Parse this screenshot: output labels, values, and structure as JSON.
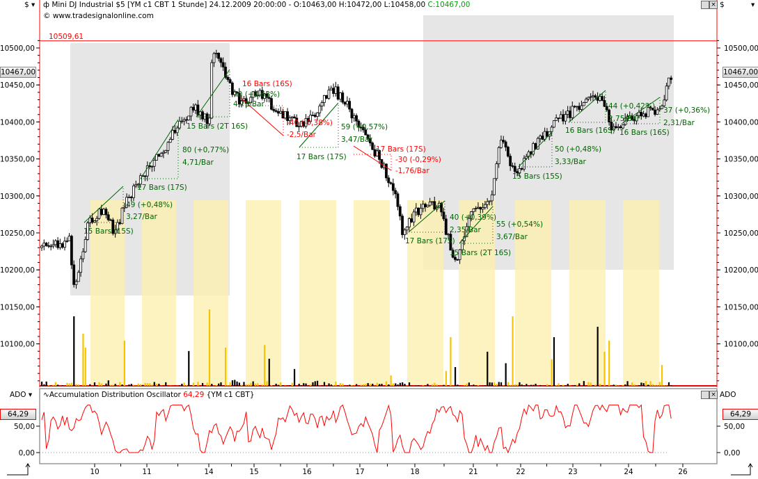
{
  "toolbar": {
    "currency_selector": "$",
    "currency_right": "$",
    "dropdown_glyph": "▾"
  },
  "header": {
    "symbol_title": "Mini DJ Industrial $5 [YM c1 CBT  1 Stunde] 24.12.2009 20:00:00 - O:10463,00 H:10472,00 L:10458,00",
    "close_text": "C:10467,00",
    "copyright": "© www.tradesignalonline.com",
    "close_color": "#00a000"
  },
  "main_panel": {
    "high_line_label": "10509,61",
    "current_price_tag": "10467,00",
    "y_ticks": [
      "10500,00",
      "10450,00",
      "10400,00",
      "10350,00",
      "10300,00",
      "10250,00",
      "10200,00",
      "10150,00",
      "10100,00"
    ]
  },
  "ado_panel": {
    "selector": "ADO",
    "title": "Accumulation Distribution Oscillator",
    "value": "64,29",
    "symbol": "{YM c1 CBT}",
    "y_ticks": [
      "50,00",
      "0,00"
    ],
    "current_tag": "64,29"
  },
  "chart_data": {
    "type": "candlestick",
    "x_ticks": [
      "10",
      "11",
      "14",
      "15",
      "16",
      "17",
      "18",
      "21",
      "22",
      "23",
      "24",
      "26"
    ],
    "ylim": [
      10045,
      10520
    ],
    "high_line": 10509.61,
    "last": {
      "open": 10463,
      "high": 10472,
      "low": 10458,
      "close": 10467
    },
    "price_path": [
      [
        -0.99,
        10230
      ],
      [
        -0.47,
        10240
      ],
      [
        -0.4,
        10175
      ],
      [
        -0.23,
        10215
      ],
      [
        -0.14,
        10265
      ],
      [
        0.18,
        10280
      ],
      [
        0.38,
        10250
      ],
      [
        0.57,
        10290
      ],
      [
        0.9,
        10330
      ],
      [
        1.35,
        10370
      ],
      [
        1.61,
        10400
      ],
      [
        1.88,
        10420
      ],
      [
        2.14,
        10400
      ],
      [
        2.2,
        10500
      ],
      [
        2.33,
        10480
      ],
      [
        2.53,
        10450
      ],
      [
        2.72,
        10425
      ],
      [
        3.05,
        10440
      ],
      [
        3.44,
        10415
      ],
      [
        3.83,
        10395
      ],
      [
        4.22,
        10420
      ],
      [
        4.41,
        10450
      ],
      [
        4.74,
        10420
      ],
      [
        5.0,
        10390
      ],
      [
        5.33,
        10350
      ],
      [
        5.65,
        10300
      ],
      [
        5.76,
        10250
      ],
      [
        6.04,
        10280
      ],
      [
        6.43,
        10290
      ],
      [
        6.63,
        10240
      ],
      [
        6.76,
        10210
      ],
      [
        7.08,
        10280
      ],
      [
        7.41,
        10290
      ],
      [
        7.6,
        10380
      ],
      [
        7.86,
        10330
      ],
      [
        8.26,
        10370
      ],
      [
        8.65,
        10400
      ],
      [
        9.04,
        10420
      ],
      [
        9.3,
        10440
      ],
      [
        9.56,
        10420
      ],
      [
        9.69,
        10390
      ],
      [
        10.21,
        10410
      ],
      [
        10.6,
        10420
      ],
      [
        10.79,
        10465
      ]
    ],
    "ado_last": 64.29,
    "ado_ylim": [
      -15,
      95
    ],
    "annotations": [
      {
        "text": "49 (+0,48%)",
        "color": "#006400"
      },
      {
        "text": "3,27/Bar",
        "color": "#006400"
      },
      {
        "text": "15 Bars (15S)",
        "color": "#006400"
      },
      {
        "text": "80 (+0,77%)",
        "color": "#006400"
      },
      {
        "text": "4,71/Bar",
        "color": "#006400"
      },
      {
        "text": "17 Bars (17S)",
        "color": "#006400"
      },
      {
        "text": "15 Bars (2T 16S)",
        "color": "#006400"
      },
      {
        "text": "70 (+0,63%)",
        "color": "#006400"
      },
      {
        "text": "4,73/Bar",
        "color": "#006400"
      },
      {
        "text": "16 Bars (16S)",
        "color": "#ff0000"
      },
      {
        "text": "-40 (-0,38%)",
        "color": "#ff0000"
      },
      {
        "text": "-2,5/Bar",
        "color": "#ff0000"
      },
      {
        "text": "59 (+0,57%)",
        "color": "#006400"
      },
      {
        "text": "3,47/Bar",
        "color": "#006400"
      },
      {
        "text": "17 Bars (17S)",
        "color": "#006400"
      },
      {
        "text": "17 Bars (17S)",
        "color": "#ff0000"
      },
      {
        "text": "-30 (-0,29%)",
        "color": "#ff0000"
      },
      {
        "text": "-1,76/Bar",
        "color": "#ff0000"
      },
      {
        "text": "17 Bars (17S)",
        "color": "#006400"
      },
      {
        "text": "40 (+0,39%)",
        "color": "#006400"
      },
      {
        "text": "2,35/Bar",
        "color": "#006400"
      },
      {
        "text": "55 (+0,54%)",
        "color": "#006400"
      },
      {
        "text": "3,67/Bar",
        "color": "#006400"
      },
      {
        "text": "15 Bars (2T 16S)",
        "color": "#006400"
      },
      {
        "text": "50 (+0,48%)",
        "color": "#006400"
      },
      {
        "text": "3,33/Bar",
        "color": "#006400"
      },
      {
        "text": "15 Bars (15S)",
        "color": "#006400"
      },
      {
        "text": "16 Bars (16S)",
        "color": "#006400"
      },
      {
        "text": "44 (+0,42%)",
        "color": "#006400"
      },
      {
        "text": "2,75/Bar",
        "color": "#006400"
      },
      {
        "text": "16 Bars (16S)",
        "color": "#006400"
      },
      {
        "text": "37 (+0,36%)",
        "color": "#006400"
      },
      {
        "text": "2,31/Bar",
        "color": "#006400"
      }
    ],
    "colors": {
      "up_candle": "#ffffff",
      "down_candle": "#000000",
      "volume_a": "#000000",
      "volume_b": "#f5c400",
      "ado_line": "#ff0000",
      "session_highlight": "#fbefb0",
      "range_box": "#e6e6e6",
      "high_line": "#ff0000"
    }
  }
}
